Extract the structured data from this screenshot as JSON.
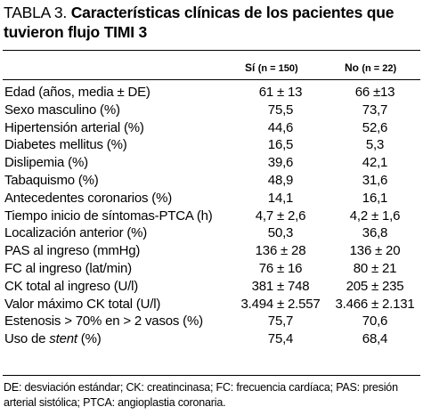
{
  "title": {
    "label": "TABLA 3.",
    "text": "Características clínicas de los pacientes que tuvieron flujo TIMI 3"
  },
  "columns": {
    "si_label": "Sí",
    "si_n": "(n = 150)",
    "no_label": "No",
    "no_n": "(n = 22)"
  },
  "rows": [
    {
      "label": "Edad (años, media ± DE)",
      "si": "61 ± 13",
      "no": "66 ±13"
    },
    {
      "label": "Sexo masculino (%)",
      "si": "75,5",
      "no": "73,7"
    },
    {
      "label": "Hipertensión arterial (%)",
      "si": "44,6",
      "no": "52,6"
    },
    {
      "label": "Diabetes mellitus (%)",
      "si": "16,5",
      "no": "5,3"
    },
    {
      "label": "Dislipemia (%)",
      "si": "39,6",
      "no": "42,1"
    },
    {
      "label": "Tabaquismo (%)",
      "si": "48,9",
      "no": "31,6"
    },
    {
      "label": "Antecedentes coronarios (%)",
      "si": "14,1",
      "no": "16,1"
    },
    {
      "label": "Tiempo inicio de síntomas-PTCA (h)",
      "si": "4,7 ± 2,6",
      "no": "4,2 ± 1,6"
    },
    {
      "label": "Localización anterior (%)",
      "si": "50,3",
      "no": "36,8"
    },
    {
      "label": "PAS al ingreso (mmHg)",
      "si": "136 ± 28",
      "no": "136 ± 20"
    },
    {
      "label": "FC al ingreso (lat/min)",
      "si": "76 ± 16",
      "no": "80 ± 21"
    },
    {
      "label": "CK total al ingreso (U/l)",
      "si": "381 ± 748",
      "no": "205 ± 235"
    },
    {
      "label": "Valor máximo CK total (U/l)",
      "si": "3.494 ± 2.557",
      "no": "3.466 ± 2.131"
    },
    {
      "label": "Estenosis > 70% en > 2 vasos (%)",
      "si": "75,7",
      "no": "70,6"
    },
    {
      "label_pre": "Uso de ",
      "label_italic": "stent",
      "label_post": " (%)",
      "si": "75,4",
      "no": "68,4"
    }
  ],
  "footnote": "DE: desviación estándar; CK: creatincinasa; FC: frecuencia cardíaca; PAS: presión arterial sistólica; PTCA: angioplastia coronaria."
}
